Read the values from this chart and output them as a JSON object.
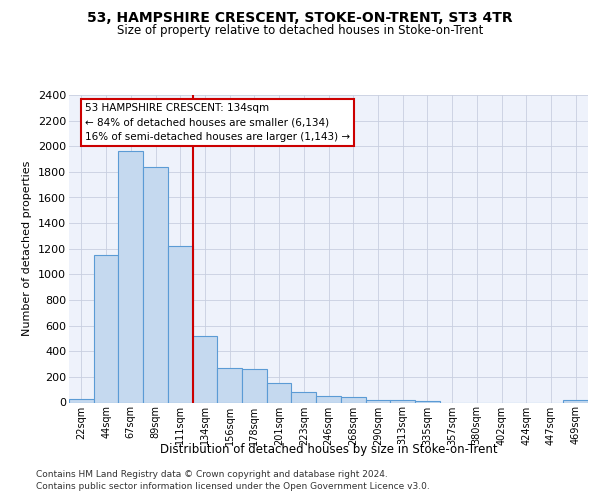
{
  "title": "53, HAMPSHIRE CRESCENT, STOKE-ON-TRENT, ST3 4TR",
  "subtitle": "Size of property relative to detached houses in Stoke-on-Trent",
  "xlabel": "Distribution of detached houses by size in Stoke-on-Trent",
  "ylabel": "Number of detached properties",
  "bar_labels": [
    "22sqm",
    "44sqm",
    "67sqm",
    "89sqm",
    "111sqm",
    "134sqm",
    "156sqm",
    "178sqm",
    "201sqm",
    "223sqm",
    "246sqm",
    "268sqm",
    "290sqm",
    "313sqm",
    "335sqm",
    "357sqm",
    "380sqm",
    "402sqm",
    "424sqm",
    "447sqm",
    "469sqm"
  ],
  "bar_values": [
    30,
    1150,
    1960,
    1840,
    1220,
    520,
    270,
    265,
    155,
    80,
    50,
    45,
    20,
    20,
    10,
    0,
    0,
    0,
    0,
    0,
    20
  ],
  "bar_color": "#c5d9ef",
  "bar_edge_color": "#5b9bd5",
  "vline_index": 5,
  "vline_color": "#cc0000",
  "annotation_line1": "53 HAMPSHIRE CRESCENT: 134sqm",
  "annotation_line2": "← 84% of detached houses are smaller (6,134)",
  "annotation_line3": "16% of semi-detached houses are larger (1,143) →",
  "ylim": [
    0,
    2400
  ],
  "yticks": [
    0,
    200,
    400,
    600,
    800,
    1000,
    1200,
    1400,
    1600,
    1800,
    2000,
    2200,
    2400
  ],
  "footer1": "Contains HM Land Registry data © Crown copyright and database right 2024.",
  "footer2": "Contains public sector information licensed under the Open Government Licence v3.0.",
  "bg_color": "#eef2fb",
  "grid_color": "#c8cfe0"
}
